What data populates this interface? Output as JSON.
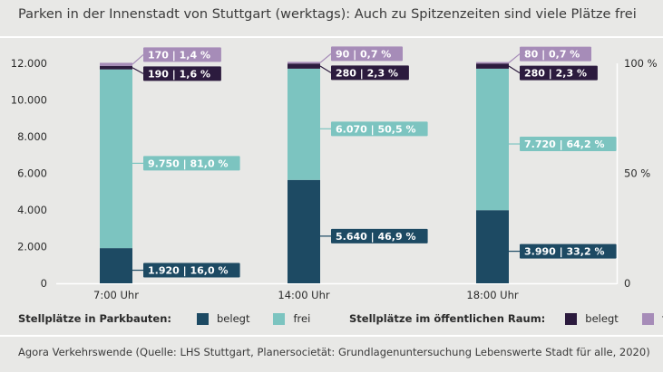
{
  "title": "Parken in der Innenstadt von Stuttgart (werktags): Auch zu Spitzenzeiten sind viele Plätze frei",
  "source": "Agora Verkehrswende (Quelle: LHS Stuttgart, Planersocietät: Grundlagenuntersuchung Lebenswerte Stadt für alle, 2020)",
  "colors": {
    "parkbauten_belegt": "#1d4a63",
    "parkbauten_frei": "#7cc4c0",
    "oeffentlich_belegt": "#2c1b3e",
    "oeffentlich_frei": "#a68cb8"
  },
  "legend": {
    "group1_title": "Stellplätze in Parkbauten:",
    "group1_belegt": "belegt",
    "group1_frei": "frei",
    "group2_title": "Stellplätze im öffentlichen Raum:",
    "group2_belegt": "belegt",
    "group2_frei": "frei"
  },
  "chart_data": {
    "type": "bar",
    "stacked": true,
    "categories": [
      "7:00 Uhr",
      "14:00 Uhr",
      "18:00 Uhr"
    ],
    "ylim": [
      0,
      12000
    ],
    "yticks": [
      "0",
      "2.000",
      "4.000",
      "6.000",
      "8.000",
      "10.000",
      "12.000"
    ],
    "y2ticks": [
      "0",
      "50 %",
      "100 %"
    ],
    "series": [
      {
        "key": "parkbauten_belegt",
        "values": [
          1920,
          5640,
          3990
        ],
        "labels": [
          "1.920 | 16,0 %",
          "5.640 | 46,9 %",
          "3.990 | 33,2 %"
        ]
      },
      {
        "key": "parkbauten_frei",
        "values": [
          9750,
          6070,
          7720
        ],
        "labels": [
          "9.750 | 81,0 %",
          "6.070 | 50,5 %",
          "7.720 | 64,2 %"
        ]
      },
      {
        "key": "oeffentlich_belegt",
        "values": [
          190,
          280,
          280
        ],
        "labels": [
          "190 | 1,6 %",
          "280 | 2,3 %",
          "280 | 2,3 %"
        ]
      },
      {
        "key": "oeffentlich_frei",
        "values": [
          170,
          90,
          80
        ],
        "labels": [
          "170 | 1,4 %",
          "90 | 0,7 %",
          "80 | 0,7 %"
        ]
      }
    ]
  }
}
